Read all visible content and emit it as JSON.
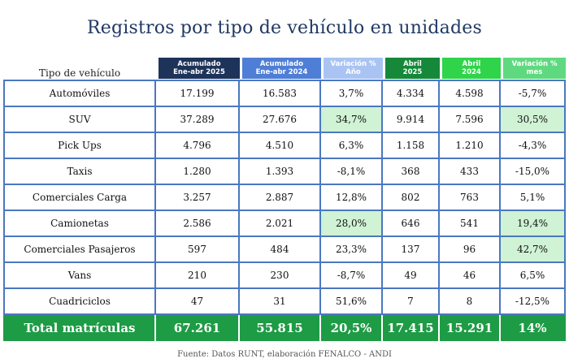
{
  "title": "Registros por tipo de vehículo en unidades",
  "header": {
    "label": "Tipo de vehículo",
    "columns": [
      {
        "l1": "Acumulado",
        "l2": "Ene-abr 2025"
      },
      {
        "l1": "Acumulado",
        "l2": "Ene-abr 2024"
      },
      {
        "l1": "Variación %",
        "l2": "Año"
      },
      {
        "l1": "Abril",
        "l2": "2025"
      },
      {
        "l1": "Abril",
        "l2": "2024"
      },
      {
        "l1": "Variación %",
        "l2": "mes"
      }
    ]
  },
  "header_colors": [
    "#1e3359",
    "#4f7ed6",
    "#a9c4f3",
    "#16883a",
    "#2fd44a",
    "#5fd97f"
  ],
  "highlight_color": "#d0f2d5",
  "rows": [
    {
      "tipo": "Automóviles",
      "acum2025": "17.199",
      "acum2024": "16.583",
      "var_anio": "3,7%",
      "abr2025": "4.334",
      "abr2024": "4.598",
      "var_mes": "-5,7%"
    },
    {
      "tipo": "SUV",
      "acum2025": "37.289",
      "acum2024": "27.676",
      "var_anio": "34,7%",
      "abr2025": "9.914",
      "abr2024": "7.596",
      "var_mes": "30,5%"
    },
    {
      "tipo": "Pick Ups",
      "acum2025": "4.796",
      "acum2024": "4.510",
      "var_anio": "6,3%",
      "abr2025": "1.158",
      "abr2024": "1.210",
      "var_mes": "-4,3%"
    },
    {
      "tipo": "Taxis",
      "acum2025": "1.280",
      "acum2024": "1.393",
      "var_anio": "-8,1%",
      "abr2025": "368",
      "abr2024": "433",
      "var_mes": "-15,0%"
    },
    {
      "tipo": "Comerciales Carga",
      "acum2025": "3.257",
      "acum2024": "2.887",
      "var_anio": "12,8%",
      "abr2025": "802",
      "abr2024": "763",
      "var_mes": "5,1%"
    },
    {
      "tipo": "Camionetas",
      "acum2025": "2.586",
      "acum2024": "2.021",
      "var_anio": "28,0%",
      "abr2025": "646",
      "abr2024": "541",
      "var_mes": "19,4%"
    },
    {
      "tipo": "Comerciales Pasajeros",
      "acum2025": "597",
      "acum2024": "484",
      "var_anio": "23,3%",
      "abr2025": "137",
      "abr2024": "96",
      "var_mes": "42,7%"
    },
    {
      "tipo": "Vans",
      "acum2025": "210",
      "acum2024": "230",
      "var_anio": "-8,7%",
      "abr2025": "49",
      "abr2024": "46",
      "var_mes": "6,5%"
    },
    {
      "tipo": "Cuadriciclos",
      "acum2025": "47",
      "acum2024": "31",
      "var_anio": "51,6%",
      "abr2025": "7",
      "abr2024": "8",
      "var_mes": "-12,5%"
    }
  ],
  "total": {
    "tipo": "Total matrículas",
    "acum2025": "67.261",
    "acum2024": "55.815",
    "var_anio": "20,5%",
    "abr2025": "17.415",
    "abr2024": "15.291",
    "var_mes": "14%"
  },
  "source": "Fuente: Datos RUNT, elaboración FENALCO - ANDI"
}
